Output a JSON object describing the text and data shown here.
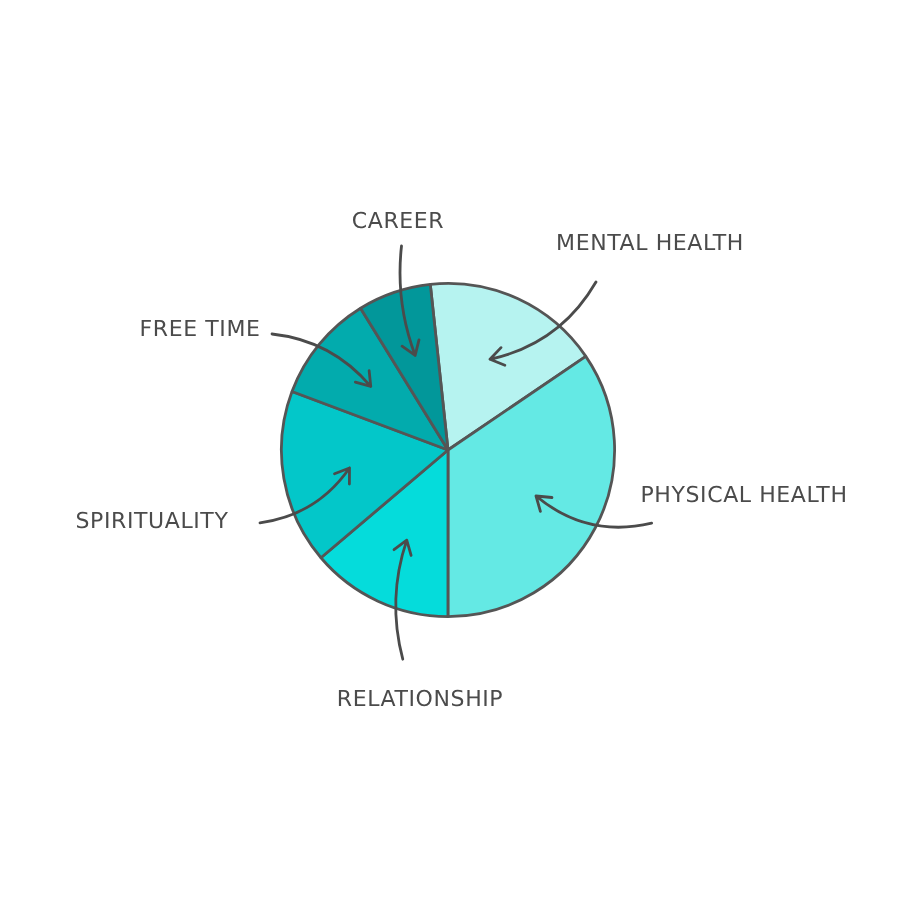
{
  "chart_data": {
    "type": "pie",
    "categories": [
      "MENTAL HEALTH",
      "PHYSICAL HEALTH",
      "RELATIONSHIP",
      "SPIRITUALITY",
      "FREE TIME",
      "CAREER"
    ],
    "values": [
      17.2,
      34.5,
      13.8,
      16.9,
      10.5,
      7.1
    ],
    "colors": [
      "#b6f3f0",
      "#64e9e4",
      "#05dcdb",
      "#03c7c9",
      "#02abad",
      "#02979a"
    ],
    "legend": false
  }
}
